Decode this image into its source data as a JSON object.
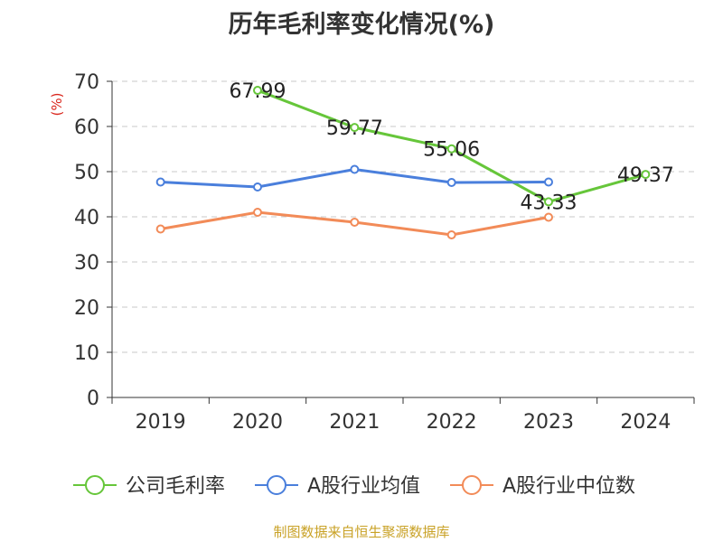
{
  "title": "历年毛利率变化情况(%)",
  "footer": "制图数据来自恒生聚源数据库",
  "chart_data": {
    "type": "line",
    "title": "历年毛利率变化情况(%)",
    "ylabel": "(%)",
    "xlabel": "",
    "categories": [
      "2019",
      "2020",
      "2021",
      "2022",
      "2023",
      "2024"
    ],
    "ylim": [
      0,
      70
    ],
    "yticks": [
      0,
      10,
      20,
      30,
      40,
      50,
      60,
      70
    ],
    "grid": true,
    "legend_position": "bottom",
    "series": [
      {
        "name": "公司毛利率",
        "color": "#66c63a",
        "values": [
          null,
          67.99,
          59.77,
          55.06,
          43.33,
          49.37
        ],
        "labels": [
          null,
          "67.99",
          "59.77",
          "55.06",
          "43.33",
          "49.37"
        ]
      },
      {
        "name": "A股行业均值",
        "color": "#4a7fdc",
        "values": [
          47.7,
          46.6,
          50.5,
          47.6,
          47.7,
          null
        ]
      },
      {
        "name": "A股行业中位数",
        "color": "#f28b58",
        "values": [
          37.3,
          41.0,
          38.8,
          36.0,
          39.9,
          null
        ]
      }
    ]
  }
}
